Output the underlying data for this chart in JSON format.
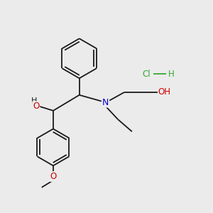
{
  "background_color": "#ebebeb",
  "bond_color": "#1a1a1a",
  "atom_colors": {
    "O": "#cc0000",
    "N": "#0000cc",
    "Cl": "#33aa33",
    "H_hcl": "#33aa33",
    "H": "#555555",
    "C": "#1a1a1a"
  },
  "figsize": [
    3.0,
    3.0
  ],
  "dpi": 100
}
